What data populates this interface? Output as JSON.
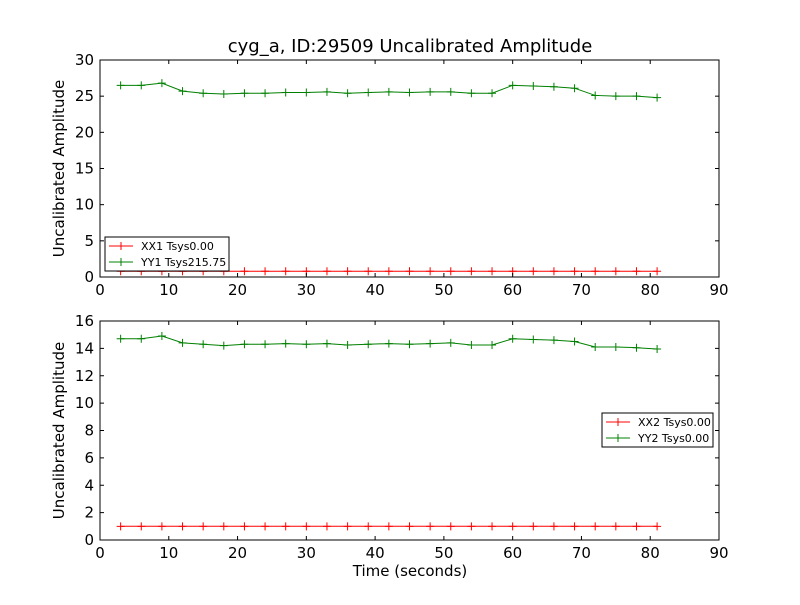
{
  "figure": {
    "title": "cyg_a, ID:29509 Uncalibrated Amplitude",
    "xlabel": "Time (seconds)"
  },
  "chart_data": [
    {
      "type": "line",
      "ylabel": "Uncalibrated Amplitude",
      "xlim": [
        0,
        90
      ],
      "ylim": [
        0,
        30
      ],
      "xticks": [
        0,
        10,
        20,
        30,
        40,
        50,
        60,
        70,
        80,
        90
      ],
      "yticks": [
        0,
        5,
        10,
        15,
        20,
        25,
        30
      ],
      "grid": false,
      "legend_position": "lower-left",
      "x": [
        3,
        6,
        9,
        12,
        15,
        18,
        21,
        24,
        27,
        30,
        33,
        36,
        39,
        42,
        45,
        48,
        51,
        54,
        57,
        60,
        63,
        66,
        69,
        72,
        75,
        78,
        81
      ],
      "series": [
        {
          "name": "XX1 Tsys0.00",
          "color": "#ff0000",
          "values": [
            0.8,
            0.8,
            0.8,
            0.8,
            0.8,
            0.8,
            0.8,
            0.8,
            0.8,
            0.8,
            0.8,
            0.8,
            0.8,
            0.8,
            0.8,
            0.8,
            0.8,
            0.8,
            0.8,
            0.8,
            0.8,
            0.8,
            0.8,
            0.8,
            0.8,
            0.8,
            0.8
          ]
        },
        {
          "name": "YY1 Tsys215.75",
          "color": "#008000",
          "values": [
            26.5,
            26.5,
            26.8,
            25.7,
            25.4,
            25.3,
            25.4,
            25.4,
            25.5,
            25.5,
            25.6,
            25.4,
            25.5,
            25.6,
            25.5,
            25.6,
            25.6,
            25.4,
            25.4,
            26.5,
            26.4,
            26.3,
            26.1,
            25.1,
            25.0,
            25.0,
            24.8
          ]
        }
      ]
    },
    {
      "type": "line",
      "ylabel": "Uncalibrated Amplitude",
      "xlabel": "Time (seconds)",
      "xlim": [
        0,
        90
      ],
      "ylim": [
        0,
        16
      ],
      "xticks": [
        0,
        10,
        20,
        30,
        40,
        50,
        60,
        70,
        80,
        90
      ],
      "yticks": [
        0,
        2,
        4,
        6,
        8,
        10,
        12,
        14,
        16
      ],
      "grid": false,
      "legend_position": "center-right",
      "x": [
        3,
        6,
        9,
        12,
        15,
        18,
        21,
        24,
        27,
        30,
        33,
        36,
        39,
        42,
        45,
        48,
        51,
        54,
        57,
        60,
        63,
        66,
        69,
        72,
        75,
        78,
        81
      ],
      "series": [
        {
          "name": "XX2 Tsys0.00",
          "color": "#ff0000",
          "values": [
            1.0,
            1.0,
            1.0,
            1.0,
            1.0,
            1.0,
            1.0,
            1.0,
            1.0,
            1.0,
            1.0,
            1.0,
            1.0,
            1.0,
            1.0,
            1.0,
            1.0,
            1.0,
            1.0,
            1.0,
            1.0,
            1.0,
            1.0,
            1.0,
            1.0,
            1.0,
            1.0
          ]
        },
        {
          "name": "YY2 Tsys0.00",
          "color": "#008000",
          "values": [
            14.7,
            14.7,
            14.9,
            14.4,
            14.3,
            14.2,
            14.3,
            14.3,
            14.35,
            14.3,
            14.35,
            14.25,
            14.3,
            14.35,
            14.3,
            14.35,
            14.4,
            14.25,
            14.25,
            14.7,
            14.65,
            14.6,
            14.5,
            14.1,
            14.1,
            14.05,
            13.95
          ]
        }
      ]
    }
  ]
}
